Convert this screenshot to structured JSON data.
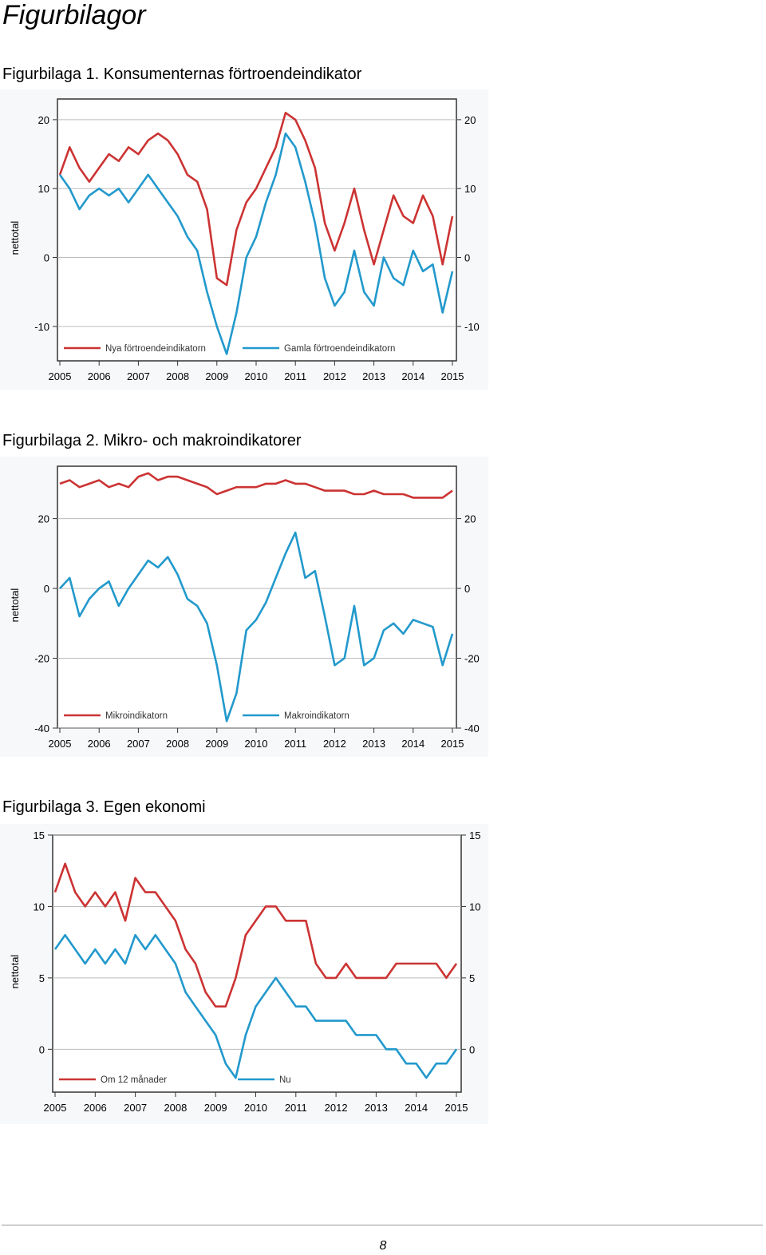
{
  "page_title": "Figurbilagor",
  "page_number": "8",
  "figures": [
    {
      "title": "Figurbilaga 1. Konsumenternas förtroendeindikator"
    },
    {
      "title": "Figurbilaga 2. Mikro- och makroindikatorer"
    },
    {
      "title": "Figurbilaga 3. Egen ekonomi"
    }
  ],
  "chart_data": [
    {
      "type": "line",
      "title": "Figurbilaga 1. Konsumenternas förtroendeindikator",
      "ylabel": "nettotal",
      "ylim": [
        -15,
        23
      ],
      "yticks": [
        20,
        10,
        0,
        -10
      ],
      "xlim": [
        2005,
        2015
      ],
      "xticks": [
        "2005",
        "2006",
        "2007",
        "2008",
        "2009",
        "2010",
        "2011",
        "2012",
        "2013",
        "2014",
        "2015"
      ],
      "legend_position": "bottom",
      "series": [
        {
          "name": "Nya förtroendeindikatorn",
          "color": "#cc3333",
          "x": [
            2005.0,
            2005.25,
            2005.5,
            2005.75,
            2006.0,
            2006.25,
            2006.5,
            2006.75,
            2007.0,
            2007.25,
            2007.5,
            2007.75,
            2008.0,
            2008.25,
            2008.5,
            2008.75,
            2009.0,
            2009.25,
            2009.5,
            2009.75,
            2010.0,
            2010.25,
            2010.5,
            2010.75,
            2011.0,
            2011.25,
            2011.5,
            2011.75,
            2012.0,
            2012.25,
            2012.5,
            2012.75,
            2013.0,
            2013.25,
            2013.5,
            2013.75,
            2014.0,
            2014.25,
            2014.5,
            2014.75,
            2015.0
          ],
          "values": [
            12,
            16,
            13,
            11,
            13,
            15,
            14,
            16,
            15,
            17,
            18,
            17,
            15,
            12,
            11,
            7,
            -3,
            -4,
            4,
            8,
            10,
            13,
            16,
            21,
            20,
            17,
            13,
            5,
            1,
            5,
            10,
            4,
            -1,
            4,
            9,
            6,
            5,
            9,
            6,
            -1,
            6
          ]
        },
        {
          "name": "Gamla förtroendeindikatorn",
          "color": "#2299cc",
          "x": [
            2005.0,
            2005.25,
            2005.5,
            2005.75,
            2006.0,
            2006.25,
            2006.5,
            2006.75,
            2007.0,
            2007.25,
            2007.5,
            2007.75,
            2008.0,
            2008.25,
            2008.5,
            2008.75,
            2009.0,
            2009.25,
            2009.5,
            2009.75,
            2010.0,
            2010.25,
            2010.5,
            2010.75,
            2011.0,
            2011.25,
            2011.5,
            2011.75,
            2012.0,
            2012.25,
            2012.5,
            2012.75,
            2013.0,
            2013.25,
            2013.5,
            2013.75,
            2014.0,
            2014.25,
            2014.5,
            2014.75,
            2015.0
          ],
          "values": [
            12,
            10,
            7,
            9,
            10,
            9,
            10,
            8,
            10,
            12,
            10,
            8,
            6,
            3,
            1,
            -5,
            -10,
            -14,
            -8,
            0,
            3,
            8,
            12,
            18,
            16,
            11,
            5,
            -3,
            -7,
            -5,
            1,
            -5,
            -7,
            0,
            -3,
            -4,
            1,
            -2,
            -1,
            -8,
            -2
          ]
        }
      ]
    },
    {
      "type": "line",
      "title": "Figurbilaga 2. Mikro- och makroindikatorer",
      "ylabel": "nettotal",
      "ylim": [
        -40,
        35
      ],
      "yticks": [
        20,
        0,
        -20,
        -40
      ],
      "xlim": [
        2005,
        2015
      ],
      "xticks": [
        "2005",
        "2006",
        "2007",
        "2008",
        "2009",
        "2010",
        "2011",
        "2012",
        "2013",
        "2014",
        "2015"
      ],
      "legend_position": "bottom",
      "series": [
        {
          "name": "Mikroindikatorn",
          "color": "#cc3333",
          "x": [
            2005.0,
            2005.25,
            2005.5,
            2005.75,
            2006.0,
            2006.25,
            2006.5,
            2006.75,
            2007.0,
            2007.25,
            2007.5,
            2007.75,
            2008.0,
            2008.25,
            2008.5,
            2008.75,
            2009.0,
            2009.25,
            2009.5,
            2009.75,
            2010.0,
            2010.25,
            2010.5,
            2010.75,
            2011.0,
            2011.25,
            2011.5,
            2011.75,
            2012.0,
            2012.25,
            2012.5,
            2012.75,
            2013.0,
            2013.25,
            2013.5,
            2013.75,
            2014.0,
            2014.25,
            2014.5,
            2014.75,
            2015.0
          ],
          "values": [
            30,
            31,
            29,
            30,
            31,
            29,
            30,
            29,
            32,
            33,
            31,
            32,
            32,
            31,
            30,
            29,
            27,
            28,
            29,
            29,
            29,
            30,
            30,
            31,
            30,
            30,
            29,
            28,
            28,
            28,
            27,
            27,
            28,
            27,
            27,
            27,
            26,
            26,
            26,
            26,
            28
          ]
        },
        {
          "name": "Makroindikatorn",
          "color": "#2299cc",
          "x": [
            2005.0,
            2005.25,
            2005.5,
            2005.75,
            2006.0,
            2006.25,
            2006.5,
            2006.75,
            2007.0,
            2007.25,
            2007.5,
            2007.75,
            2008.0,
            2008.25,
            2008.5,
            2008.75,
            2009.0,
            2009.25,
            2009.5,
            2009.75,
            2010.0,
            2010.25,
            2010.5,
            2010.75,
            2011.0,
            2011.25,
            2011.5,
            2011.75,
            2012.0,
            2012.25,
            2012.5,
            2012.75,
            2013.0,
            2013.25,
            2013.5,
            2013.75,
            2014.0,
            2014.25,
            2014.5,
            2014.75,
            2015.0
          ],
          "values": [
            0,
            3,
            -8,
            -3,
            0,
            2,
            -5,
            0,
            4,
            8,
            6,
            9,
            4,
            -3,
            -5,
            -10,
            -22,
            -38,
            -30,
            -12,
            -9,
            -4,
            3,
            10,
            16,
            3,
            5,
            -8,
            -22,
            -20,
            -5,
            -22,
            -20,
            -12,
            -10,
            -13,
            -9,
            -10,
            -11,
            -22,
            -13
          ]
        }
      ]
    },
    {
      "type": "line",
      "title": "Figurbilaga 3. Egen ekonomi",
      "ylabel": "nettotal",
      "ylim": [
        -3,
        15
      ],
      "yticks": [
        15,
        10,
        5,
        0
      ],
      "xlim": [
        2005,
        2015
      ],
      "xticks": [
        "2005",
        "2006",
        "2007",
        "2008",
        "2009",
        "2010",
        "2011",
        "2012",
        "2013",
        "2014",
        "2015"
      ],
      "legend_position": "bottom",
      "series": [
        {
          "name": "Om 12 månader",
          "color": "#cc3333",
          "x": [
            2005.0,
            2005.25,
            2005.5,
            2005.75,
            2006.0,
            2006.25,
            2006.5,
            2006.75,
            2007.0,
            2007.25,
            2007.5,
            2007.75,
            2008.0,
            2008.25,
            2008.5,
            2008.75,
            2009.0,
            2009.25,
            2009.5,
            2009.75,
            2010.0,
            2010.25,
            2010.5,
            2010.75,
            2011.0,
            2011.25,
            2011.5,
            2011.75,
            2012.0,
            2012.25,
            2012.5,
            2012.75,
            2013.0,
            2013.25,
            2013.5,
            2013.75,
            2014.0,
            2014.25,
            2014.5,
            2014.75,
            2015.0
          ],
          "values": [
            11,
            13,
            11,
            10,
            11,
            10,
            11,
            9,
            12,
            11,
            11,
            10,
            9,
            7,
            6,
            4,
            3,
            3,
            5,
            8,
            9,
            10,
            10,
            9,
            9,
            9,
            6,
            5,
            5,
            6,
            5,
            5,
            5,
            5,
            6,
            6,
            6,
            6,
            6,
            5,
            6
          ]
        },
        {
          "name": "Nu",
          "color": "#2299cc",
          "x": [
            2005.0,
            2005.25,
            2005.5,
            2005.75,
            2006.0,
            2006.25,
            2006.5,
            2006.75,
            2007.0,
            2007.25,
            2007.5,
            2007.75,
            2008.0,
            2008.25,
            2008.5,
            2008.75,
            2009.0,
            2009.25,
            2009.5,
            2009.75,
            2010.0,
            2010.25,
            2010.5,
            2010.75,
            2011.0,
            2011.25,
            2011.5,
            2011.75,
            2012.0,
            2012.25,
            2012.5,
            2012.75,
            2013.0,
            2013.25,
            2013.5,
            2013.75,
            2014.0,
            2014.25,
            2014.5,
            2014.75,
            2015.0
          ],
          "values": [
            7,
            8,
            7,
            6,
            7,
            6,
            7,
            6,
            8,
            7,
            8,
            7,
            6,
            4,
            3,
            2,
            1,
            -1,
            -2,
            1,
            3,
            4,
            5,
            4,
            3,
            3,
            2,
            2,
            2,
            2,
            1,
            1,
            1,
            0,
            0,
            -1,
            -1,
            -2,
            -1,
            -1,
            0
          ]
        }
      ]
    }
  ]
}
